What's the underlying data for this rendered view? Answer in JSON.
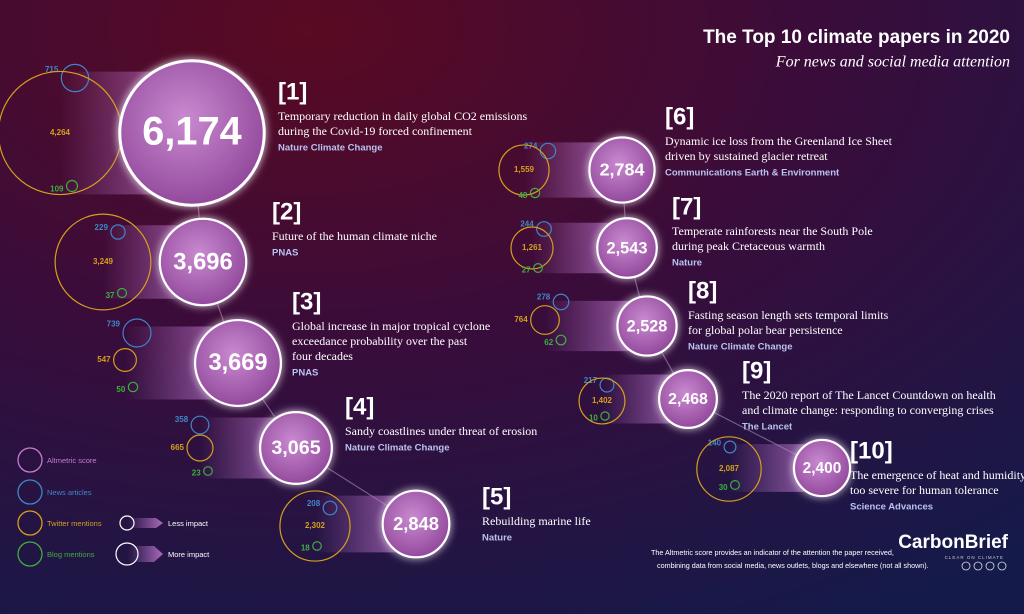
{
  "title": "The Top 10 climate papers in 2020",
  "subtitle": "For news and social media attention",
  "papers": [
    {
      "rank": "[1]",
      "title": [
        "Temporary reduction in daily global CO2 emissions",
        "during the Covid-19 forced confinement"
      ],
      "journal": "Nature Climate Change",
      "altmetric": {
        "value": 6174,
        "label": "6,174"
      },
      "news": 715,
      "twitter": {
        "value": 4264,
        "label": "4,264"
      },
      "blogs": 109
    },
    {
      "rank": "[2]",
      "title": [
        "Future of the human climate niche"
      ],
      "journal": "PNAS",
      "altmetric": {
        "value": 3696,
        "label": "3,696"
      },
      "news": 229,
      "twitter": {
        "value": 3249,
        "label": "3,249"
      },
      "blogs": 37
    },
    {
      "rank": "[3]",
      "title": [
        "Global increase in major tropical cyclone",
        "exceedance probability over the past",
        "four decades"
      ],
      "journal": "PNAS",
      "altmetric": {
        "value": 3669,
        "label": "3,669"
      },
      "news": 739,
      "twitter": 547,
      "blogs": 50
    },
    {
      "rank": "[4]",
      "title": [
        "Sandy coastlines under threat of erosion"
      ],
      "journal": "Nature Climate Change",
      "altmetric": {
        "value": 3065,
        "label": "3,065"
      },
      "news": 358,
      "twitter": 665,
      "blogs": 23
    },
    {
      "rank": "[5]",
      "title": [
        "Rebuilding marine life"
      ],
      "journal": "Nature",
      "altmetric": {
        "value": 2848,
        "label": "2,848"
      },
      "news": 208,
      "twitter": {
        "value": 2302,
        "label": "2,302"
      },
      "blogs": 18
    },
    {
      "rank": "[6]",
      "title": [
        "Dynamic ice loss from the Greenland Ice Sheet",
        "driven by sustained glacier retreat"
      ],
      "journal": "Communications Earth & Environment",
      "altmetric": {
        "value": 2784,
        "label": "2,784"
      },
      "news": 274,
      "twitter": {
        "value": 1559,
        "label": "1,559"
      },
      "blogs": 48
    },
    {
      "rank": "[7]",
      "title": [
        "Temperate rainforests near the South Pole",
        "during peak Cretaceous warmth"
      ],
      "journal": "Nature",
      "altmetric": {
        "value": 2543,
        "label": "2,543"
      },
      "news": 244,
      "twitter": {
        "value": 1261,
        "label": "1,261"
      },
      "blogs": 27
    },
    {
      "rank": "[8]",
      "title": [
        "Fasting season length sets temporal limits",
        "for global polar bear persistence"
      ],
      "journal": "Nature Climate Change",
      "altmetric": {
        "value": 2528,
        "label": "2,528"
      },
      "news": 278,
      "twitter": 764,
      "blogs": 62
    },
    {
      "rank": "[9]",
      "title": [
        "The 2020 report of The Lancet Countdown on health",
        "and climate change: responding to converging crises"
      ],
      "journal": "The Lancet",
      "altmetric": {
        "value": 2468,
        "label": "2,468"
      },
      "news": 217,
      "twitter": {
        "value": 1402,
        "label": "1,402"
      },
      "blogs": 10
    },
    {
      "rank": "[10]",
      "title": [
        "The emergence of heat and humidity",
        "too severe for human tolerance"
      ],
      "journal": "Science Advances",
      "altmetric": {
        "value": 2400,
        "label": "2,400"
      },
      "news": 140,
      "twitter": {
        "value": 2087,
        "label": "2,087"
      },
      "blogs": 30
    }
  ],
  "legend": {
    "altmetric": "Altmetric score",
    "news": "News articles",
    "twitter": "Twitter mentions",
    "blogs": "Blog mentions",
    "less": "Less impact",
    "more": "More impact"
  },
  "footnote": [
    "The Altmetric score provides an indicator of the attention the paper received,",
    "combining data from social media, news outlets, blogs and elsewhere (not all shown)."
  ],
  "brand": "CarbonBrief",
  "tagline": "CLEAR ON CLIMATE"
}
